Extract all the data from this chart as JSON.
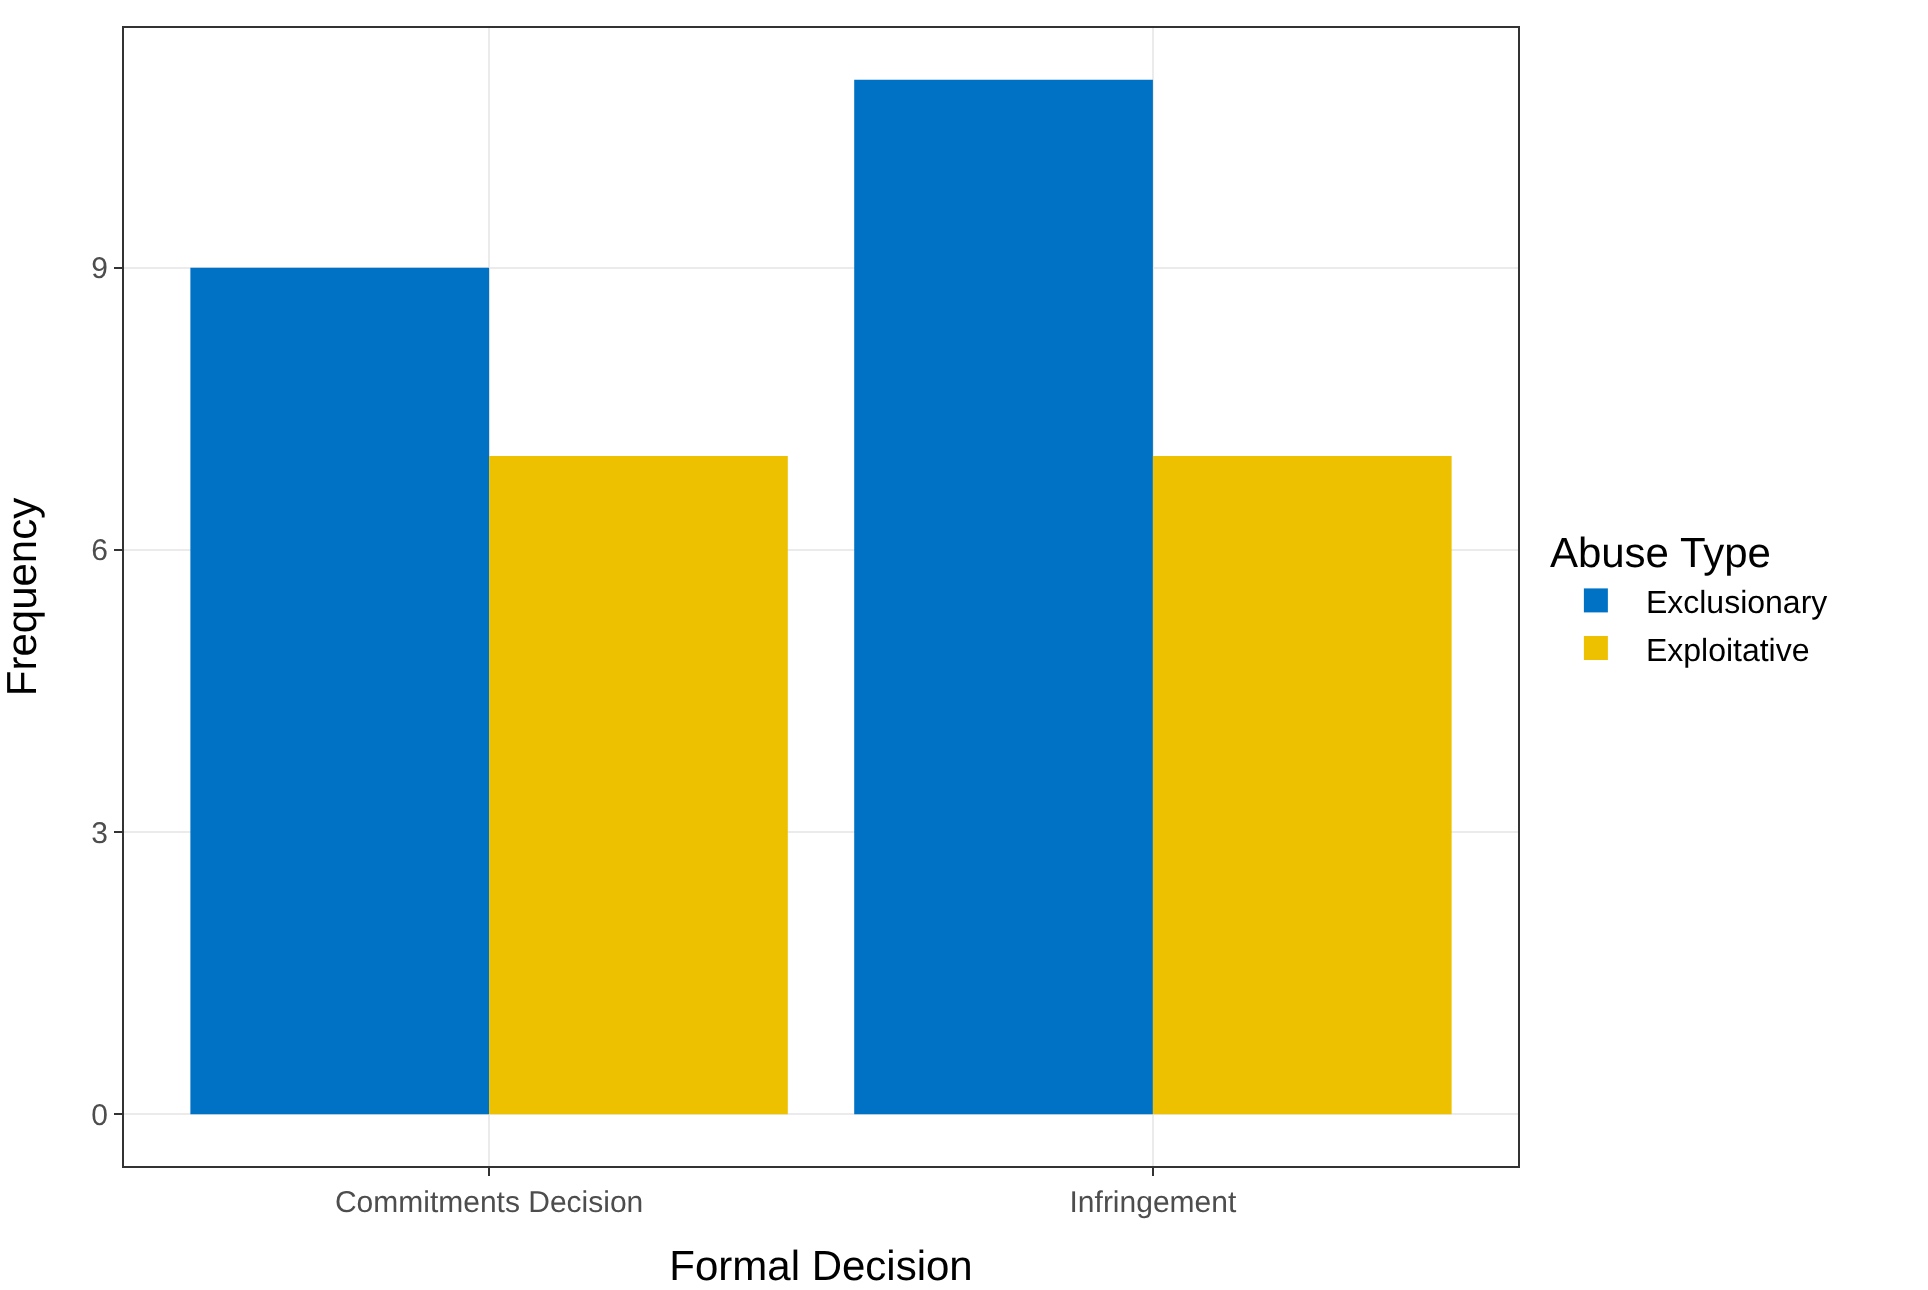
{
  "chart_data": {
    "type": "bar",
    "xlabel": "Formal Decision",
    "ylabel": "Frequency",
    "legend_title": "Abuse Type",
    "categories": [
      "Commitments Decision",
      "Infringement"
    ],
    "series": [
      {
        "name": "Exclusionary",
        "color": "#0072c6",
        "values": [
          9,
          11
        ]
      },
      {
        "name": "Exploitative",
        "color": "#edc000",
        "values": [
          7,
          7
        ]
      }
    ],
    "ylim": [
      -0.55,
      11.55
    ],
    "yticks": [
      0,
      3,
      6,
      9
    ],
    "grid": true,
    "legend": "right"
  }
}
